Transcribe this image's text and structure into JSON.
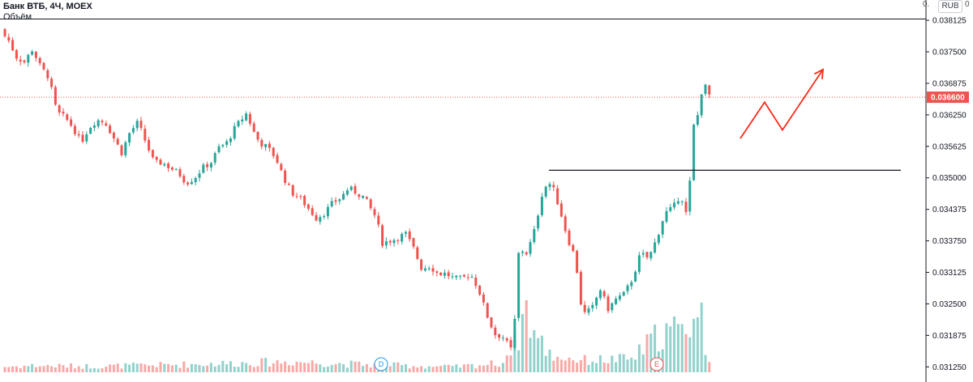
{
  "legend": {
    "symbol": "Банк ВТБ, 4Ч, MOEX",
    "volume_label": "Объём"
  },
  "corner_labels": {
    "left": "0.",
    "right": "0"
  },
  "currency_button": "RUB",
  "price_axis": {
    "ticks": [
      "0.038125",
      "0.037500",
      "0.036875",
      "0.036250",
      "0.035625",
      "0.035000",
      "0.034375",
      "0.033750",
      "0.033125",
      "0.032500",
      "0.031875",
      "0.031250"
    ],
    "current_price_label": "0.036600"
  },
  "colors": {
    "up": "#26a69a",
    "down": "#ef5350",
    "line": "#131722",
    "arrow": "#ff2a1a",
    "badge": "#ef5350"
  },
  "events": [
    {
      "label": "D"
    },
    {
      "label": "E"
    }
  ],
  "chart_data": {
    "type": "candlestick",
    "title": "Банк ВТБ, 4Ч, MOEX",
    "ylim": [
      0.03095,
      0.03848
    ],
    "y_ticks": [
      0.038125,
      0.0375,
      0.036875,
      0.03625,
      0.035625,
      0.035,
      0.034375,
      0.03375,
      0.033125,
      0.0325,
      0.031875,
      0.03125
    ],
    "current_price": 0.0366,
    "horizontal_levels": [
      0.03815,
      0.03515
    ],
    "close_path": [
      [
        0,
        0.0379
      ],
      [
        10,
        0.03775
      ],
      [
        20,
        0.0374
      ],
      [
        30,
        0.0373
      ],
      [
        40,
        0.03755
      ],
      [
        50,
        0.0372
      ],
      [
        60,
        0.037
      ],
      [
        70,
        0.0363
      ],
      [
        80,
        0.0362
      ],
      [
        90,
        0.036
      ],
      [
        100,
        0.0357
      ],
      [
        110,
        0.036
      ],
      [
        120,
        0.03615
      ],
      [
        130,
        0.0361
      ],
      [
        140,
        0.0358
      ],
      [
        150,
        0.0355
      ],
      [
        160,
        0.0359
      ],
      [
        170,
        0.0361
      ],
      [
        180,
        0.0357
      ],
      [
        190,
        0.0353
      ],
      [
        200,
        0.0353
      ],
      [
        210,
        0.0352
      ],
      [
        220,
        0.0351
      ],
      [
        230,
        0.0349
      ],
      [
        240,
        0.035
      ],
      [
        250,
        0.0352
      ],
      [
        260,
        0.0353
      ],
      [
        270,
        0.0356
      ],
      [
        280,
        0.0357
      ],
      [
        290,
        0.036
      ],
      [
        300,
        0.0362
      ],
      [
        305,
        0.0363
      ],
      [
        310,
        0.036
      ],
      [
        320,
        0.0357
      ],
      [
        330,
        0.0356
      ],
      [
        340,
        0.0354
      ],
      [
        350,
        0.035
      ],
      [
        360,
        0.0347
      ],
      [
        370,
        0.0346
      ],
      [
        380,
        0.0344
      ],
      [
        390,
        0.0342
      ],
      [
        400,
        0.0343
      ],
      [
        410,
        0.0345
      ],
      [
        420,
        0.0346
      ],
      [
        430,
        0.0348
      ],
      [
        440,
        0.0347
      ],
      [
        450,
        0.0346
      ],
      [
        460,
        0.0343
      ],
      [
        465,
        0.0342
      ],
      [
        470,
        0.0337
      ],
      [
        480,
        0.03375
      ],
      [
        490,
        0.0338
      ],
      [
        500,
        0.0339
      ],
      [
        510,
        0.0336
      ],
      [
        520,
        0.0332
      ],
      [
        530,
        0.03325
      ],
      [
        540,
        0.0331
      ],
      [
        550,
        0.0331
      ],
      [
        560,
        0.033
      ],
      [
        570,
        0.033
      ],
      [
        580,
        0.0331
      ],
      [
        590,
        0.0328
      ],
      [
        600,
        0.0323
      ],
      [
        610,
        0.0319
      ],
      [
        620,
        0.03185
      ],
      [
        630,
        0.0316
      ],
      [
        635,
        0.0322
      ],
      [
        640,
        0.0336
      ],
      [
        650,
        0.0335
      ],
      [
        660,
        0.034
      ],
      [
        670,
        0.0348
      ],
      [
        680,
        0.0349
      ],
      [
        690,
        0.0344
      ],
      [
        700,
        0.0338
      ],
      [
        710,
        0.0334
      ],
      [
        715,
        0.0326
      ],
      [
        720,
        0.0323
      ],
      [
        730,
        0.0324
      ],
      [
        740,
        0.0328
      ],
      [
        750,
        0.0324
      ],
      [
        760,
        0.0326
      ],
      [
        770,
        0.0327
      ],
      [
        780,
        0.033
      ],
      [
        790,
        0.0335
      ],
      [
        800,
        0.0334
      ],
      [
        810,
        0.0338
      ],
      [
        820,
        0.0343
      ],
      [
        830,
        0.0344
      ],
      [
        840,
        0.0347
      ],
      [
        845,
        0.0342
      ],
      [
        850,
        0.0347
      ],
      [
        855,
        0.036
      ],
      [
        860,
        0.0362
      ],
      [
        865,
        0.0367
      ],
      [
        870,
        0.0368
      ],
      [
        876,
        0.0366
      ]
    ],
    "volume_profile": [
      [
        0,
        8
      ],
      [
        40,
        10
      ],
      [
        120,
        9
      ],
      [
        200,
        11
      ],
      [
        300,
        14
      ],
      [
        360,
        16
      ],
      [
        440,
        12
      ],
      [
        500,
        10
      ],
      [
        560,
        8
      ],
      [
        620,
        14
      ],
      [
        632,
        45
      ],
      [
        636,
        40
      ],
      [
        648,
        100
      ],
      [
        660,
        55
      ],
      [
        680,
        25
      ],
      [
        720,
        18
      ],
      [
        780,
        20
      ],
      [
        810,
        55
      ],
      [
        830,
        65
      ],
      [
        840,
        55
      ],
      [
        850,
        85
      ],
      [
        858,
        70
      ],
      [
        862,
        110
      ],
      [
        872,
        20
      ]
    ],
    "forecast_arrow": [
      [
        0.03578,
        913
      ],
      [
        0.0365,
        943
      ],
      [
        0.03595,
        965
      ],
      [
        0.03715,
        1015
      ]
    ]
  }
}
